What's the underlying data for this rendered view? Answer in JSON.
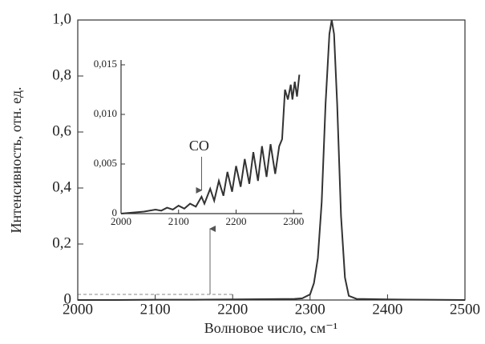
{
  "chart_data": [
    {
      "type": "line",
      "x_label": "Волновое число, см⁻¹",
      "y_label": "Интенсивность, отн. ед.",
      "x": [
        2000,
        2050,
        2100,
        2150,
        2200,
        2250,
        2280,
        2290,
        2300,
        2305,
        2310,
        2315,
        2320,
        2325,
        2328,
        2331,
        2335,
        2340,
        2345,
        2350,
        2360,
        2400,
        2450,
        2500
      ],
      "values": [
        0,
        0,
        0.001,
        0.001,
        0.002,
        0.003,
        0.004,
        0.006,
        0.02,
        0.06,
        0.15,
        0.35,
        0.7,
        0.95,
        1.0,
        0.95,
        0.7,
        0.3,
        0.08,
        0.015,
        0.004,
        0.002,
        0.001,
        0
      ],
      "color": "#333333",
      "xlim": [
        2000,
        2500
      ],
      "ylim": [
        0,
        1.0
      ],
      "xticks": [
        2000,
        2100,
        2200,
        2300,
        2400,
        2500
      ],
      "yticks": [
        0,
        {
          "value": 0.2,
          "label": "0,2"
        },
        {
          "value": 0.4,
          "label": "0,4"
        },
        {
          "value": 0.6,
          "label": "0,6"
        },
        {
          "value": 0.8,
          "label": "0,8"
        },
        {
          "value": 1.0,
          "label": "1,0"
        }
      ]
    },
    {
      "type": "line",
      "x": [
        2000,
        2020,
        2040,
        2060,
        2070,
        2080,
        2090,
        2100,
        2110,
        2120,
        2130,
        2140,
        2145,
        2155,
        2162,
        2170,
        2178,
        2185,
        2193,
        2200,
        2208,
        2215,
        2223,
        2230,
        2238,
        2245,
        2253,
        2260,
        2268,
        2275,
        2280,
        2285,
        2290,
        2295,
        2298,
        2302,
        2306,
        2310
      ],
      "values": [
        0,
        0.0001,
        0.0002,
        0.0004,
        0.0003,
        0.0006,
        0.0004,
        0.0008,
        0.0005,
        0.001,
        0.0007,
        0.0017,
        0.001,
        0.0025,
        0.0013,
        0.0033,
        0.0018,
        0.0042,
        0.0022,
        0.0048,
        0.0027,
        0.0055,
        0.003,
        0.0062,
        0.0033,
        0.0068,
        0.0037,
        0.007,
        0.004,
        0.0068,
        0.0075,
        0.0125,
        0.0115,
        0.013,
        0.0115,
        0.0133,
        0.0118,
        0.014
      ],
      "color": "#333333",
      "xlim": [
        2000,
        2315
      ],
      "ylim": [
        0,
        0.015
      ],
      "xticks": [
        2000,
        2100,
        2200,
        2300
      ],
      "yticks": [
        0,
        {
          "value": 0.005,
          "label": "0,005"
        },
        {
          "value": 0.01,
          "label": "0,010"
        },
        {
          "value": 0.015,
          "label": "0,015"
        }
      ],
      "annotations": [
        {
          "text": "CO",
          "x": 2140,
          "y": 0.0017
        }
      ]
    }
  ]
}
